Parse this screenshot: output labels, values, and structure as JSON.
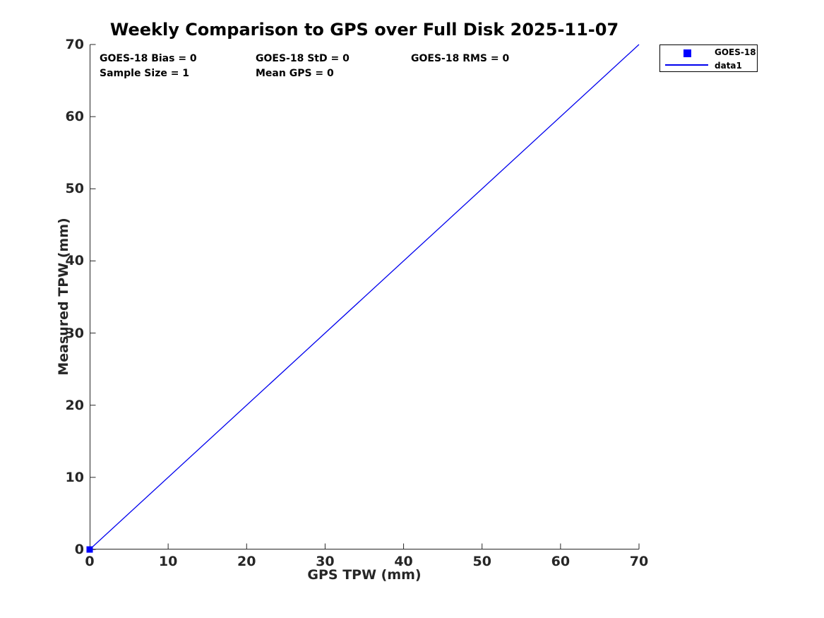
{
  "title": "Weekly Comparison to GPS over Full Disk 2025-11-07",
  "stats": {
    "bias": "GOES-18 Bias = 0",
    "std": "GOES-18 StD = 0",
    "rms": "GOES-18 RMS = 0",
    "sample_size": "Sample Size = 1",
    "mean_gps": "Mean GPS = 0"
  },
  "legend": {
    "items": [
      {
        "label": "GOES-18",
        "swatch": "square-marker"
      },
      {
        "label": "data1",
        "swatch": "line"
      }
    ]
  },
  "colors": {
    "series_line": "#0000EE",
    "marker": "#0000FF",
    "axis": "#262626",
    "title_text": "#000000"
  },
  "chart_data": {
    "type": "scatter",
    "title": "Weekly Comparison to GPS over Full Disk 2025-11-07",
    "xlabel": "GPS TPW (mm)",
    "ylabel": "Measured TPW (mm)",
    "xlim": [
      0,
      70
    ],
    "ylim": [
      0,
      70
    ],
    "xticks": [
      0,
      10,
      20,
      30,
      40,
      50,
      60,
      70
    ],
    "yticks": [
      0,
      10,
      20,
      30,
      40,
      50,
      60,
      70
    ],
    "grid": false,
    "legend_position": "outside-top-right",
    "series": [
      {
        "name": "GOES-18",
        "type": "scatter",
        "marker": "filled-square",
        "points": [
          [
            0,
            0
          ]
        ]
      },
      {
        "name": "data1",
        "type": "line",
        "points": [
          [
            0,
            0
          ],
          [
            70,
            70
          ]
        ]
      }
    ]
  }
}
